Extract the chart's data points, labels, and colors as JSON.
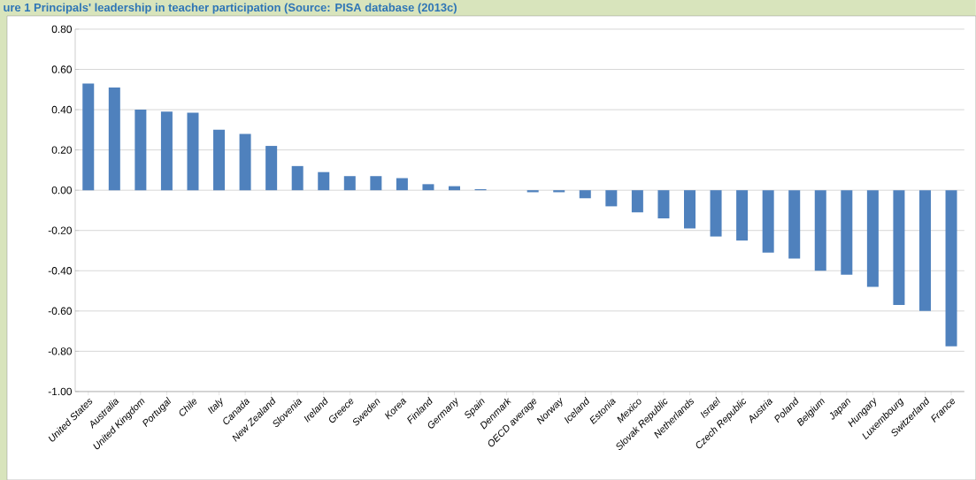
{
  "chart_data": {
    "type": "bar",
    "title": "ure 1 Principals' leadership in teacher participation (Source: PISA database (2013c)",
    "categories": [
      "United States",
      "Australia",
      "United Kingdom",
      "Portugal",
      "Chile",
      "Italy",
      "Canada",
      "New Zealand",
      "Slovenia",
      "Ireland",
      "Greece",
      "Sweden",
      "Korea",
      "Finland",
      "Germany",
      "Spain",
      "Denmark",
      "OECD average",
      "Norway",
      "Iceland",
      "Estonia",
      "Mexico",
      "Slovak Republic",
      "Netherlands",
      "Israel",
      "Czech Republic",
      "Austria",
      "Poland",
      "Belgium",
      "Japan",
      "Hungary",
      "Luxembourg",
      "Switzerland",
      "France"
    ],
    "values": [
      0.53,
      0.51,
      0.4,
      0.39,
      0.385,
      0.3,
      0.28,
      0.22,
      0.12,
      0.09,
      0.07,
      0.07,
      0.06,
      0.03,
      0.02,
      0.005,
      0.0,
      -0.01,
      -0.01,
      -0.04,
      -0.08,
      -0.11,
      -0.14,
      -0.19,
      -0.23,
      -0.25,
      -0.31,
      -0.34,
      -0.4,
      -0.42,
      -0.48,
      -0.57,
      -0.6,
      -0.775
    ],
    "color": "#4f81bd",
    "ylim": [
      -1.0,
      0.8
    ],
    "yticks": [
      {
        "value": -1.0,
        "label": "-1.00"
      },
      {
        "value": -0.8,
        "label": "-0.80"
      },
      {
        "value": -0.6,
        "label": "-0.60"
      },
      {
        "value": -0.4,
        "label": "-0.40"
      },
      {
        "value": -0.2,
        "label": "-0.20"
      },
      {
        "value": 0.0,
        "label": "0.00"
      },
      {
        "value": 0.2,
        "label": "0.20"
      },
      {
        "value": 0.4,
        "label": "0.40"
      },
      {
        "value": 0.6,
        "label": "0.60"
      },
      {
        "value": 0.8,
        "label": "0.80"
      }
    ],
    "grid": "y"
  }
}
